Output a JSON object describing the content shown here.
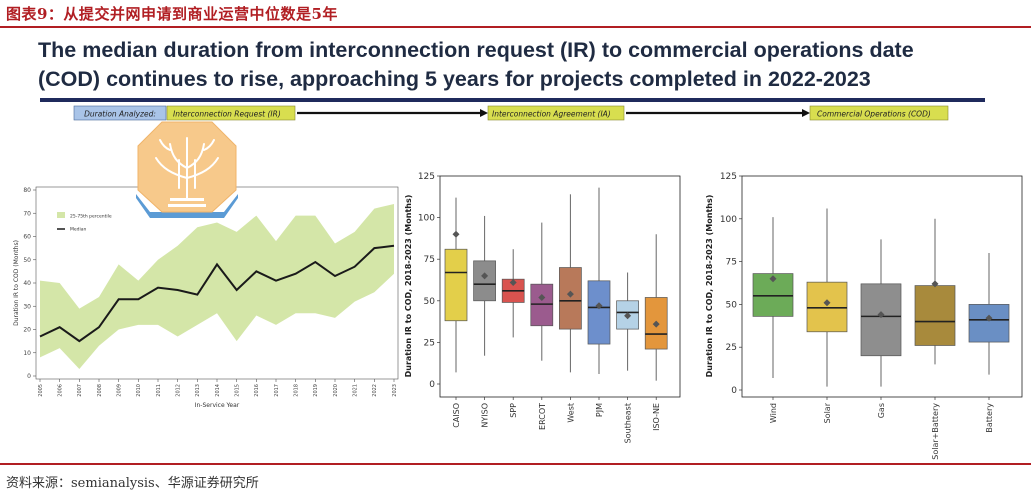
{
  "figure": {
    "title": "图表9：从提交并网申请到商业运营中位数是5年",
    "headline_line1": "The median duration from interconnection request (IR) to commercial operations date",
    "headline_line2": "(COD) continues to rise, approaching 5 years for projects completed in 2022-2023",
    "source": "资料来源：semianalysis、华源证券研究所"
  },
  "banner": {
    "analyzed_label": "Duration Analyzed:",
    "stage1": "Interconnection Request (IR)",
    "stage2": "Interconnection Agreement (IA)",
    "stage3": "Commercial Operations (COD)"
  },
  "colors": {
    "band": "#d4e6a8",
    "median": "#1a1a1a",
    "banner_left": "#a9c4e8",
    "banner_stage": "#d8de4f",
    "title_red": "#b11e23"
  },
  "chart_data": [
    {
      "type": "line",
      "ylabel": "Duration IR to COD (Months)",
      "xlabel": "In-Service Year",
      "ylim": [
        0,
        80
      ],
      "yticks": [
        0,
        10,
        20,
        30,
        40,
        50,
        60,
        70,
        80
      ],
      "x": [
        "2005",
        "2006",
        "2007",
        "2008",
        "2009",
        "2010",
        "2011",
        "2012",
        "2013",
        "2014",
        "2015",
        "2016",
        "2017",
        "2018",
        "2019",
        "2020",
        "2021",
        "2022",
        "2023"
      ],
      "legend": [
        "25-75th percentile",
        "Median"
      ],
      "legend_position": "top-left",
      "series": [
        {
          "name": "Median",
          "values": [
            17,
            21,
            15,
            21,
            33,
            33,
            38,
            37,
            35,
            48,
            37,
            45,
            41,
            44,
            49,
            43,
            47,
            55,
            56
          ]
        },
        {
          "name": "25-75th percentile",
          "low": [
            8,
            12,
            3,
            13,
            20,
            22,
            22,
            17,
            22,
            27,
            15,
            26,
            22,
            27,
            27,
            25,
            32,
            36,
            44
          ],
          "high": [
            41,
            40,
            29,
            34,
            48,
            41,
            50,
            56,
            64,
            66,
            62,
            69,
            58,
            69,
            69,
            57,
            62,
            72,
            74
          ]
        }
      ]
    },
    {
      "type": "box",
      "ylabel": "Duration IR to COD, 2018-2023 (Months)",
      "ylim": [
        0,
        125
      ],
      "yticks": [
        0,
        25,
        50,
        75,
        100,
        125
      ],
      "categories": [
        "CAISO",
        "NYISO",
        "SPP",
        "ERCOT",
        "West",
        "PJM",
        "Southeast",
        "ISO-NE"
      ],
      "box_colors": [
        "#e3cf4a",
        "#8c8c8c",
        "#d9534f",
        "#9b5b8e",
        "#b8795a",
        "#6d8fcc",
        "#b5d2e6",
        "#e3963c"
      ],
      "min": [
        7,
        17,
        28,
        14,
        7,
        6,
        8,
        2
      ],
      "q1": [
        38,
        50,
        49,
        35,
        33,
        24,
        33,
        21
      ],
      "median": [
        67,
        60,
        56,
        48,
        50,
        46,
        43,
        30
      ],
      "q3": [
        81,
        74,
        63,
        60,
        70,
        62,
        50,
        52
      ],
      "max": [
        112,
        101,
        81,
        97,
        114,
        118,
        67,
        90
      ],
      "mean": [
        90,
        65,
        61,
        52,
        54,
        47,
        41,
        36
      ]
    },
    {
      "type": "box",
      "ylabel": "Duration IR to COD, 2018-2023 (Months)",
      "ylim": [
        0,
        125
      ],
      "yticks": [
        0,
        25,
        50,
        75,
        100,
        125
      ],
      "categories": [
        "Wind",
        "Solar",
        "Gas",
        "Solar+Battery",
        "Battery"
      ],
      "box_colors": [
        "#6cab58",
        "#e3c34c",
        "#8e8e8e",
        "#a88a3c",
        "#6a8fc4"
      ],
      "min": [
        7,
        2,
        2,
        15,
        9
      ],
      "q1": [
        43,
        34,
        20,
        26,
        28
      ],
      "median": [
        55,
        48,
        43,
        40,
        41
      ],
      "q3": [
        68,
        63,
        62,
        61,
        50
      ],
      "max": [
        101,
        106,
        88,
        100,
        80
      ],
      "mean": [
        65,
        51,
        44,
        62,
        42
      ]
    }
  ]
}
